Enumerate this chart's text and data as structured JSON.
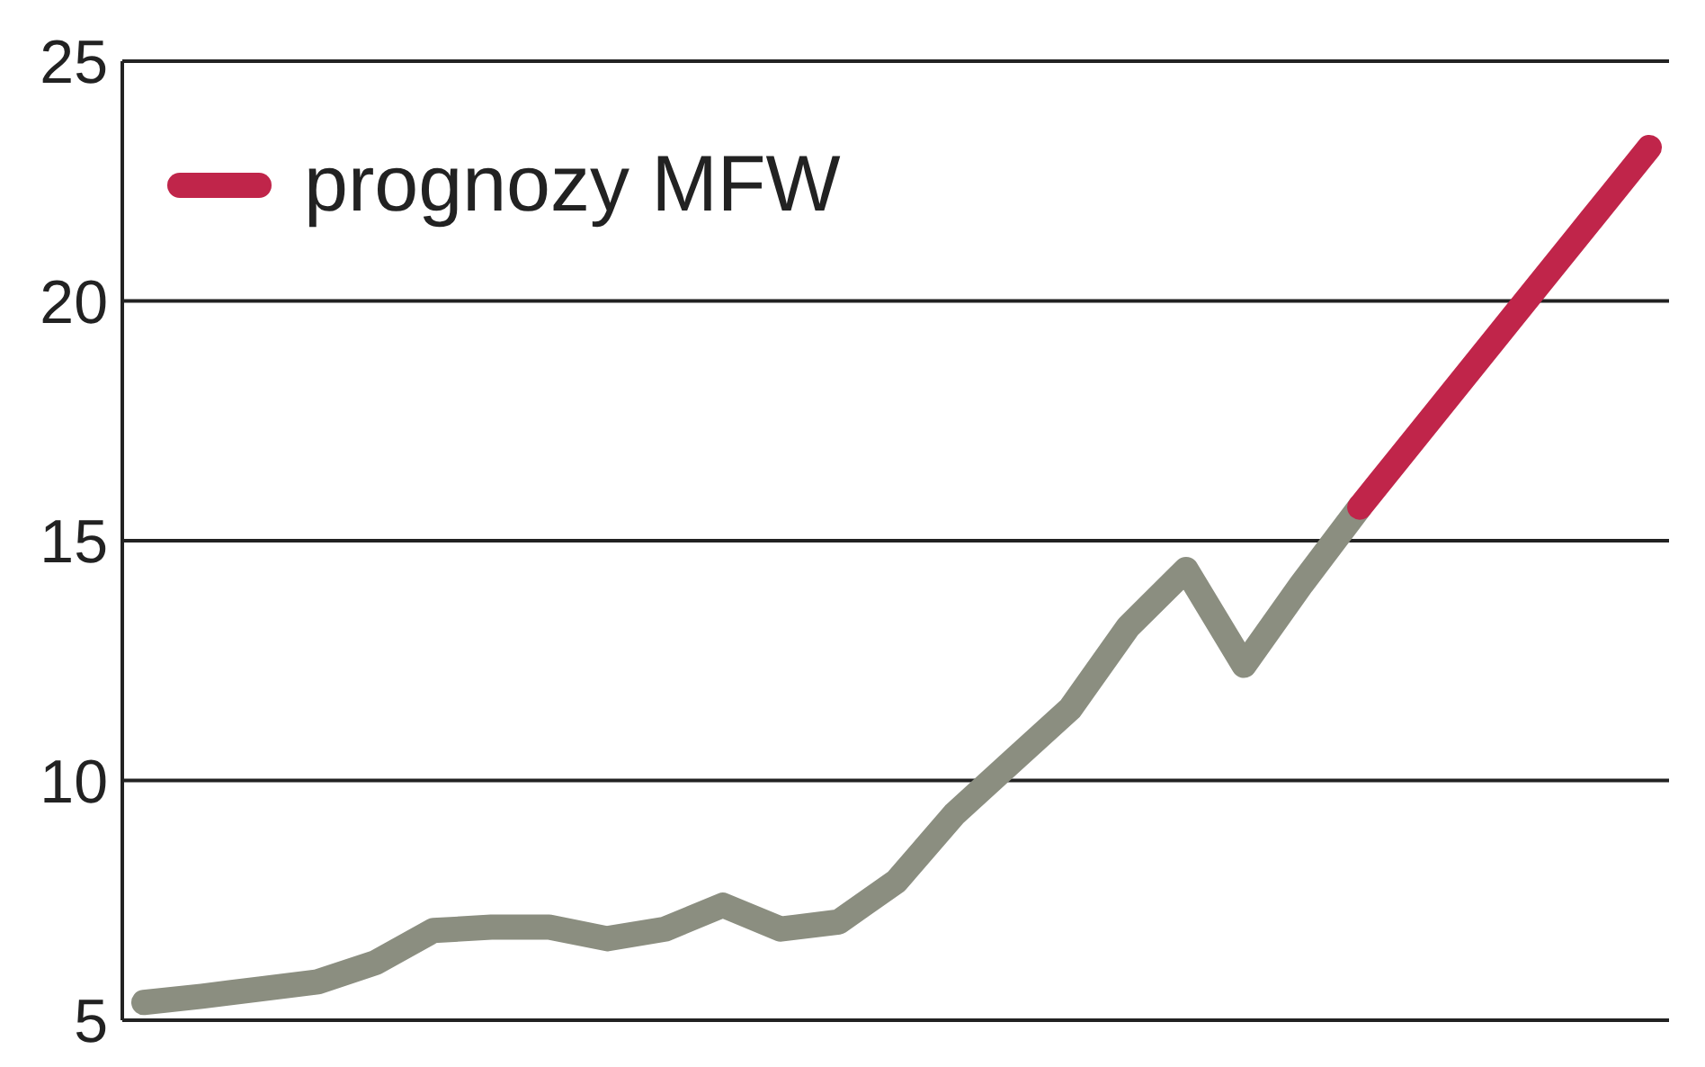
{
  "chart_data": {
    "type": "line",
    "categories": [
      null,
      null,
      null,
      null,
      null,
      null,
      null,
      null,
      null,
      null,
      null,
      null,
      null,
      null,
      null,
      null,
      null,
      null,
      null,
      null,
      null,
      null,
      null,
      null,
      null,
      null,
      null
    ],
    "series": [
      {
        "color": "#8b8e80",
        "values": [
          5.37,
          5.5,
          5.65,
          5.8,
          6.2,
          6.87,
          6.94,
          6.94,
          6.7,
          6.9,
          7.4,
          6.9,
          7.05,
          7.9,
          9.3,
          10.4,
          11.5,
          13.2,
          14.4,
          12.4,
          14.1,
          15.7,
          null,
          null,
          null,
          null,
          null
        ]
      },
      {
        "name": "prognozy MFW",
        "color": "#c0254a",
        "values": [
          null,
          null,
          null,
          null,
          null,
          null,
          null,
          null,
          null,
          null,
          null,
          null,
          null,
          null,
          null,
          null,
          null,
          null,
          null,
          null,
          null,
          15.7,
          17.2,
          18.7,
          20.2,
          21.7,
          23.2
        ]
      }
    ],
    "ylim": [
      5,
      25
    ],
    "yticks": [
      5,
      10,
      15,
      20,
      25
    ],
    "grid": "y",
    "legend": "top left",
    "tick_labels": "y",
    "marker": "none",
    "line_style": "solid"
  }
}
